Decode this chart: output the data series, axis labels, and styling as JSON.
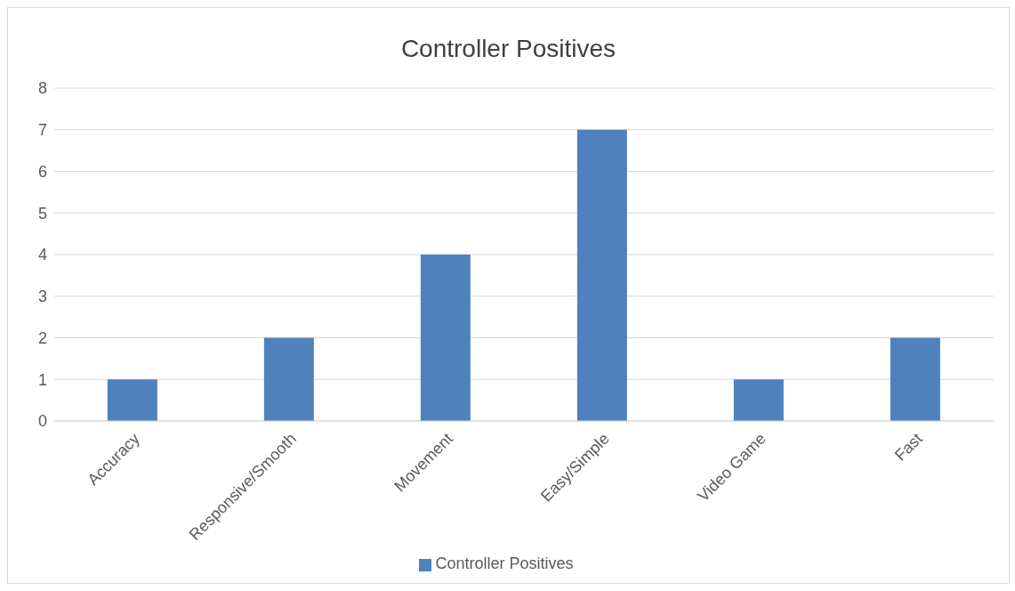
{
  "chart_data": {
    "type": "bar",
    "title": "Controller Positives",
    "categories": [
      "Accuracy",
      "Responsive/Smooth",
      "Movement",
      "Easy/Simple",
      "Video Game",
      "Fast"
    ],
    "series": [
      {
        "name": "Controller Positives",
        "color": "#4f81bd",
        "values": [
          1,
          2,
          4,
          7,
          1,
          2
        ]
      }
    ],
    "ylim": [
      0,
      8
    ],
    "yticks": [
      0,
      1,
      2,
      3,
      4,
      5,
      6,
      7,
      8
    ],
    "grid": "y",
    "legend": "bottom"
  }
}
